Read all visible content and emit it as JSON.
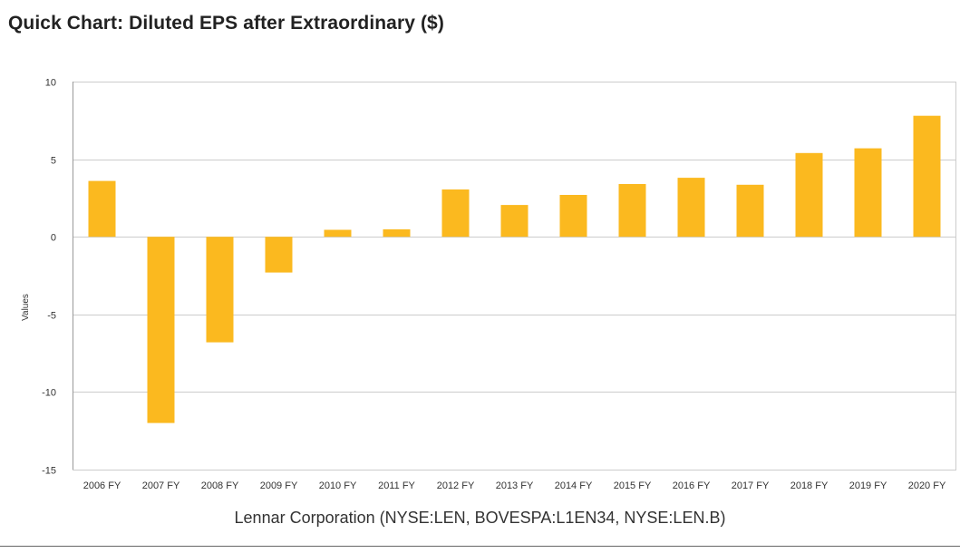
{
  "page": {
    "title": "Quick Chart: Diluted EPS after Extraordinary ($)",
    "caption": "Lennar Corporation (NYSE:LEN, BOVESPA:L1EN34, NYSE:LEN.B)"
  },
  "colors": {
    "bar": "#fbb91f",
    "grid": "#cccccc",
    "axis": "#999999"
  },
  "chart_data": {
    "type": "bar",
    "title": "Quick Chart: Diluted EPS after Extraordinary ($)",
    "xlabel": "",
    "ylabel": "Values",
    "ylim": [
      -15,
      10
    ],
    "yticks": [
      10,
      5,
      0,
      -5,
      -10,
      -15
    ],
    "grid": true,
    "legend": "none",
    "categories": [
      "2006 FY",
      "2007 FY",
      "2008 FY",
      "2009 FY",
      "2010 FY",
      "2011 FY",
      "2012 FY",
      "2013 FY",
      "2014 FY",
      "2015 FY",
      "2016 FY",
      "2017 FY",
      "2018 FY",
      "2019 FY",
      "2020 FY"
    ],
    "values": [
      3.6,
      -12.0,
      -6.8,
      -2.3,
      0.45,
      0.48,
      3.05,
      2.05,
      2.7,
      3.4,
      3.8,
      3.35,
      5.4,
      5.7,
      7.8
    ]
  }
}
